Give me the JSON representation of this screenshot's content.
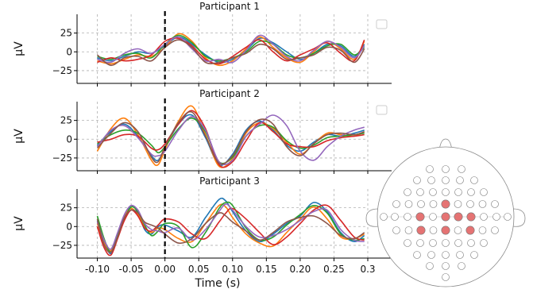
{
  "chart_data": [
    {
      "type": "line",
      "title": "Participant 1",
      "ylabel": "µV",
      "xlim": [
        -0.13,
        0.3
      ],
      "ylim": [
        -42,
        50
      ],
      "yticks": [
        -25,
        0,
        25
      ],
      "grid": true,
      "series": [
        {
          "color": "#1f77b4",
          "x": [
            -0.1,
            -0.08,
            -0.06,
            -0.04,
            -0.02,
            0.0,
            0.02,
            0.04,
            0.06,
            0.08,
            0.1,
            0.12,
            0.14,
            0.16,
            0.18,
            0.2,
            0.22,
            0.24,
            0.26,
            0.28,
            0.295
          ],
          "values": [
            -8,
            -12,
            -6,
            0,
            -2,
            8,
            20,
            10,
            -4,
            -14,
            -10,
            2,
            18,
            12,
            0,
            -10,
            -2,
            10,
            8,
            -6,
            10
          ]
        },
        {
          "color": "#ff7f0e",
          "x": [
            -0.1,
            -0.08,
            -0.06,
            -0.04,
            -0.02,
            0.0,
            0.02,
            0.04,
            0.06,
            0.08,
            0.1,
            0.12,
            0.14,
            0.16,
            0.18,
            0.2,
            0.22,
            0.24,
            0.26,
            0.28,
            0.295
          ],
          "values": [
            -12,
            -16,
            -10,
            -4,
            -6,
            6,
            24,
            14,
            -8,
            -18,
            -12,
            4,
            20,
            6,
            -8,
            -14,
            0,
            14,
            4,
            -10,
            14
          ]
        },
        {
          "color": "#2ca02c",
          "x": [
            -0.1,
            -0.08,
            -0.06,
            -0.04,
            -0.02,
            0.0,
            0.02,
            0.04,
            0.06,
            0.08,
            0.1,
            0.12,
            0.14,
            0.16,
            0.18,
            0.2,
            0.22,
            0.24,
            0.26,
            0.28,
            0.295
          ],
          "values": [
            -6,
            -10,
            -4,
            -2,
            -8,
            10,
            22,
            12,
            -6,
            -12,
            -8,
            0,
            14,
            10,
            -4,
            -8,
            -2,
            8,
            10,
            -4,
            6
          ]
        },
        {
          "color": "#d62728",
          "x": [
            -0.1,
            -0.08,
            -0.06,
            -0.04,
            -0.02,
            0.0,
            0.02,
            0.04,
            0.06,
            0.08,
            0.1,
            0.12,
            0.14,
            0.16,
            0.18,
            0.2,
            0.22,
            0.24,
            0.26,
            0.28,
            0.295
          ],
          "values": [
            -14,
            -8,
            -12,
            -10,
            -4,
            14,
            18,
            8,
            -10,
            -16,
            -6,
            6,
            16,
            0,
            -12,
            -4,
            4,
            12,
            -2,
            -12,
            16
          ]
        },
        {
          "color": "#9467bd",
          "x": [
            -0.1,
            -0.08,
            -0.06,
            -0.04,
            -0.02,
            0.0,
            0.02,
            0.04,
            0.06,
            0.08,
            0.1,
            0.12,
            0.14,
            0.16,
            0.18,
            0.2,
            0.22,
            0.24,
            0.26,
            0.28,
            0.295
          ],
          "values": [
            -10,
            -14,
            -2,
            4,
            -2,
            10,
            20,
            4,
            -12,
            -10,
            -14,
            2,
            22,
            10,
            -6,
            -12,
            2,
            14,
            6,
            -8,
            8
          ]
        },
        {
          "color": "#8c564b",
          "x": [
            -0.1,
            -0.08,
            -0.06,
            -0.04,
            -0.02,
            0.0,
            0.02,
            0.04,
            0.06,
            0.08,
            0.1,
            0.12,
            0.14,
            0.16,
            0.18,
            0.2,
            0.22,
            0.24,
            0.26,
            0.28,
            0.295
          ],
          "values": [
            -4,
            -18,
            -8,
            -6,
            -12,
            6,
            16,
            6,
            -14,
            -14,
            -8,
            -2,
            10,
            4,
            -10,
            -8,
            -4,
            6,
            2,
            -14,
            4
          ]
        }
      ]
    },
    {
      "type": "line",
      "title": "Participant 2",
      "ylabel": "µV",
      "xlim": [
        -0.13,
        0.3
      ],
      "ylim": [
        -42,
        50
      ],
      "yticks": [
        -25,
        0,
        25
      ],
      "grid": true,
      "series": [
        {
          "color": "#1f77b4",
          "x": [
            -0.1,
            -0.08,
            -0.06,
            -0.04,
            -0.02,
            -0.01,
            0.0,
            0.02,
            0.04,
            0.06,
            0.08,
            0.1,
            0.12,
            0.14,
            0.16,
            0.18,
            0.2,
            0.22,
            0.24,
            0.26,
            0.28,
            0.295
          ],
          "values": [
            -8,
            10,
            20,
            4,
            -22,
            -28,
            -12,
            20,
            32,
            2,
            -34,
            -20,
            12,
            24,
            12,
            -8,
            -16,
            -4,
            6,
            4,
            8,
            12
          ]
        },
        {
          "color": "#ff7f0e",
          "x": [
            -0.1,
            -0.08,
            -0.06,
            -0.04,
            -0.02,
            -0.01,
            0.0,
            0.02,
            0.04,
            0.06,
            0.08,
            0.1,
            0.12,
            0.14,
            0.16,
            0.18,
            0.2,
            0.22,
            0.24,
            0.26,
            0.28,
            0.295
          ],
          "values": [
            -16,
            14,
            28,
            6,
            -28,
            -34,
            -14,
            24,
            44,
            6,
            -36,
            -26,
            8,
            22,
            14,
            -4,
            -20,
            -6,
            8,
            6,
            4,
            10
          ]
        },
        {
          "color": "#2ca02c",
          "x": [
            -0.1,
            -0.08,
            -0.06,
            -0.04,
            -0.02,
            -0.01,
            0.0,
            0.02,
            0.04,
            0.06,
            0.08,
            0.1,
            0.12,
            0.14,
            0.16,
            0.18,
            0.2,
            0.22,
            0.24,
            0.26,
            0.28,
            0.295
          ],
          "values": [
            -6,
            6,
            12,
            8,
            -8,
            -18,
            -10,
            14,
            28,
            10,
            -30,
            -24,
            4,
            18,
            16,
            -2,
            -12,
            -8,
            2,
            4,
            6,
            8
          ]
        },
        {
          "color": "#d62728",
          "x": [
            -0.1,
            -0.08,
            -0.06,
            -0.04,
            -0.02,
            -0.01,
            0.0,
            0.02,
            0.04,
            0.06,
            0.08,
            0.1,
            0.12,
            0.14,
            0.16,
            0.18,
            0.2,
            0.22,
            0.24,
            0.26,
            0.28,
            0.295
          ],
          "values": [
            -4,
            0,
            6,
            4,
            -12,
            -14,
            -6,
            20,
            38,
            14,
            -34,
            -30,
            -2,
            22,
            10,
            -6,
            -10,
            -10,
            -2,
            2,
            4,
            6
          ]
        },
        {
          "color": "#9467bd",
          "x": [
            -0.1,
            -0.08,
            -0.06,
            -0.04,
            -0.02,
            -0.01,
            0.0,
            0.02,
            0.04,
            0.06,
            0.08,
            0.1,
            0.12,
            0.14,
            0.16,
            0.18,
            0.2,
            0.22,
            0.24,
            0.26,
            0.28,
            0.295
          ],
          "values": [
            -10,
            12,
            18,
            2,
            -20,
            -22,
            -16,
            12,
            30,
            12,
            -30,
            -28,
            4,
            20,
            32,
            18,
            -16,
            -28,
            -10,
            4,
            12,
            16
          ]
        },
        {
          "color": "#8c564b",
          "x": [
            -0.1,
            -0.08,
            -0.06,
            -0.04,
            -0.02,
            -0.01,
            0.0,
            0.02,
            0.04,
            0.06,
            0.08,
            0.1,
            0.12,
            0.14,
            0.16,
            0.18,
            0.2,
            0.22,
            0.24,
            0.26,
            0.28,
            0.295
          ],
          "values": [
            -12,
            8,
            22,
            10,
            -24,
            -30,
            -10,
            22,
            36,
            4,
            -32,
            -22,
            10,
            26,
            20,
            -10,
            -22,
            -6,
            6,
            8,
            6,
            10
          ]
        }
      ]
    },
    {
      "type": "line",
      "title": "Participant 3",
      "ylabel": "µV",
      "xlabel": "Time (s)",
      "xlim": [
        -0.13,
        0.3
      ],
      "ylim": [
        -42,
        50
      ],
      "yticks": [
        -25,
        0,
        25
      ],
      "xticks": [
        -0.1,
        -0.05,
        0.0,
        0.05,
        0.1,
        0.15,
        0.2,
        0.25,
        0.3
      ],
      "xticklabels": [
        "-0.10",
        "-0.05",
        "0.00",
        "0.05",
        "0.10",
        "0.15",
        "0.20",
        "0.25",
        "0.3"
      ],
      "grid": true,
      "series": [
        {
          "color": "#1f77b4",
          "x": [
            -0.1,
            -0.09,
            -0.08,
            -0.07,
            -0.06,
            -0.05,
            -0.04,
            -0.03,
            -0.02,
            -0.01,
            0.0,
            0.02,
            0.04,
            0.06,
            0.08,
            0.09,
            0.1,
            0.12,
            0.14,
            0.16,
            0.18,
            0.2,
            0.22,
            0.24,
            0.26,
            0.28,
            0.295
          ],
          "values": [
            8,
            -20,
            -36,
            -14,
            12,
            28,
            18,
            -4,
            -10,
            0,
            2,
            -6,
            -14,
            12,
            36,
            34,
            20,
            -6,
            -20,
            -10,
            4,
            14,
            32,
            20,
            -8,
            -20,
            -12
          ]
        },
        {
          "color": "#ff7f0e",
          "x": [
            -0.1,
            -0.09,
            -0.08,
            -0.07,
            -0.06,
            -0.05,
            -0.04,
            -0.03,
            -0.02,
            -0.01,
            0.0,
            0.02,
            0.04,
            0.06,
            0.08,
            0.09,
            0.1,
            0.12,
            0.14,
            0.16,
            0.18,
            0.2,
            0.22,
            0.24,
            0.26,
            0.28,
            0.295
          ],
          "values": [
            4,
            -22,
            -32,
            -10,
            14,
            24,
            16,
            0,
            -8,
            -2,
            -4,
            -16,
            -20,
            4,
            28,
            26,
            12,
            -10,
            -22,
            -26,
            -8,
            10,
            26,
            10,
            -14,
            -16,
            -10
          ]
        },
        {
          "color": "#2ca02c",
          "x": [
            -0.1,
            -0.09,
            -0.08,
            -0.07,
            -0.06,
            -0.05,
            -0.04,
            -0.03,
            -0.02,
            -0.01,
            0.0,
            0.02,
            0.04,
            0.06,
            0.08,
            0.09,
            0.1,
            0.12,
            0.14,
            0.16,
            0.18,
            0.2,
            0.22,
            0.24,
            0.26,
            0.28,
            0.295
          ],
          "values": [
            14,
            -16,
            -34,
            -12,
            10,
            26,
            20,
            2,
            -12,
            -6,
            4,
            0,
            -28,
            -8,
            24,
            32,
            28,
            -2,
            -18,
            -14,
            2,
            16,
            28,
            18,
            -10,
            -18,
            -16
          ]
        },
        {
          "color": "#d62728",
          "x": [
            -0.1,
            -0.09,
            -0.08,
            -0.07,
            -0.06,
            -0.05,
            -0.04,
            -0.03,
            -0.02,
            -0.01,
            0.0,
            0.02,
            0.04,
            0.06,
            0.08,
            0.09,
            0.1,
            0.12,
            0.14,
            0.16,
            0.18,
            0.2,
            0.22,
            0.24,
            0.26,
            0.28,
            0.295
          ],
          "values": [
            0,
            -28,
            -38,
            -16,
            8,
            22,
            14,
            -2,
            -6,
            2,
            10,
            6,
            -10,
            -16,
            6,
            18,
            24,
            10,
            -8,
            -24,
            -14,
            4,
            22,
            28,
            8,
            -14,
            -18
          ]
        },
        {
          "color": "#9467bd",
          "x": [
            -0.1,
            -0.09,
            -0.08,
            -0.07,
            -0.06,
            -0.05,
            -0.04,
            -0.03,
            -0.02,
            -0.01,
            0.0,
            0.02,
            0.04,
            0.06,
            0.08,
            0.09,
            0.1,
            0.12,
            0.14,
            0.16,
            0.18,
            0.2,
            0.22,
            0.24,
            0.26,
            0.28,
            0.295
          ],
          "values": [
            6,
            -18,
            -30,
            -8,
            16,
            28,
            22,
            4,
            -4,
            -6,
            -8,
            -2,
            -18,
            -4,
            20,
            30,
            22,
            0,
            -14,
            -12,
            -4,
            8,
            20,
            22,
            -4,
            -18,
            -20
          ]
        },
        {
          "color": "#8c564b",
          "x": [
            -0.1,
            -0.09,
            -0.08,
            -0.07,
            -0.06,
            -0.05,
            -0.04,
            -0.03,
            -0.02,
            -0.01,
            0.0,
            0.02,
            0.04,
            0.06,
            0.08,
            0.09,
            0.1,
            0.12,
            0.14,
            0.16,
            0.18,
            0.2,
            0.22,
            0.24,
            0.26,
            0.28,
            0.295
          ],
          "values": [
            10,
            -24,
            -34,
            -14,
            12,
            22,
            18,
            6,
            2,
            -2,
            -10,
            -22,
            -16,
            4,
            18,
            14,
            6,
            -6,
            -18,
            -8,
            6,
            12,
            14,
            4,
            -12,
            -16,
            -8
          ]
        }
      ]
    }
  ],
  "colors": {
    "vline": "#000000",
    "grid": "#b0b0b0",
    "sensor_highlight": "#e57373",
    "sensor_default": "#ffffff",
    "outline": "#888888"
  },
  "legend_boxes": 2,
  "sensor_map": {
    "shape": "head-outline",
    "sensor_count": 59,
    "highlighted_count": 8
  }
}
